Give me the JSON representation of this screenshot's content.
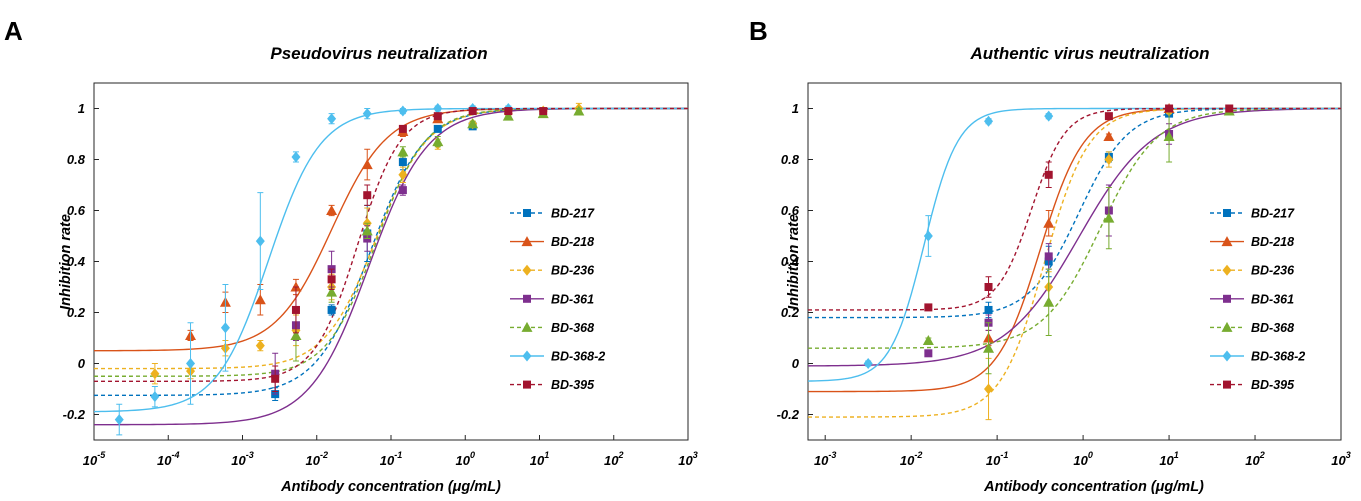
{
  "chart_data": [
    {
      "type": "scatter",
      "panel": "A",
      "title": "Pseudovirus neutralization",
      "xlabel": "Antibody concentration (μg/mL)",
      "ylabel": "Inhibition rate",
      "xscale": "log",
      "xlim": [
        -5,
        3
      ],
      "ylim": [
        -0.3,
        1.1
      ],
      "xticks": [
        {
          "base": "10",
          "exp": "-5"
        },
        {
          "base": "10",
          "exp": "-4"
        },
        {
          "base": "10",
          "exp": "-3"
        },
        {
          "base": "10",
          "exp": "-2"
        },
        {
          "base": "10",
          "exp": "-1"
        },
        {
          "base": "10",
          "exp": "0"
        },
        {
          "base": "10",
          "exp": "1"
        },
        {
          "base": "10",
          "exp": "2"
        },
        {
          "base": "10",
          "exp": "3"
        }
      ],
      "yticks": [
        "-0.2",
        "0",
        "0.2",
        "0.4",
        "0.6",
        "0.8",
        "1"
      ],
      "legend_position": "right",
      "series": [
        {
          "name": "BD-217",
          "color": "#0072BD",
          "marker": "square",
          "dash": true,
          "fit": {
            "bottom": -0.125,
            "top": 1.0,
            "log_ec50": -1.28,
            "hill": 1.2
          },
          "log_x": [
            -2.56,
            -1.8,
            -1.32,
            -0.84,
            -0.37,
            0.1
          ],
          "y": [
            -0.12,
            0.21,
            0.51,
            0.79,
            0.92,
            0.93
          ],
          "err": [
            0.025,
            0.02,
            0.11,
            0.03,
            0.01,
            0.01
          ]
        },
        {
          "name": "BD-218",
          "color": "#D95319",
          "marker": "triangle",
          "dash": false,
          "fit": {
            "bottom": 0.05,
            "top": 1.0,
            "log_ec50": -1.8,
            "hill": 1.15
          },
          "log_x": [
            -3.7,
            -3.23,
            -2.76,
            -2.28,
            -1.8,
            -1.32,
            -0.84,
            -0.37
          ],
          "y": [
            0.11,
            0.24,
            0.25,
            0.3,
            0.6,
            0.78,
            0.91,
            0.96
          ],
          "err": [
            0.02,
            0.04,
            0.06,
            0.03,
            0.02,
            0.06,
            0.02,
            0.01
          ]
        },
        {
          "name": "BD-236",
          "color": "#EDB120",
          "marker": "diamond",
          "dash": true,
          "fit": {
            "bottom": -0.02,
            "top": 1.0,
            "log_ec50": -1.2,
            "hill": 1.25
          },
          "log_x": [
            -4.18,
            -3.7,
            -3.23,
            -2.76,
            -2.28,
            -1.8,
            -1.32,
            -0.84,
            -0.37,
            0.1,
            0.58,
            1.05,
            1.53
          ],
          "y": [
            -0.04,
            -0.03,
            0.06,
            0.07,
            0.13,
            0.3,
            0.55,
            0.74,
            0.86,
            0.94,
            0.98,
            0.99,
            1.0
          ],
          "err": [
            0.04,
            0.03,
            0.03,
            0.02,
            0.06,
            0.05,
            0.06,
            0.03,
            0.02,
            0.01,
            0.01,
            0.01,
            0.02
          ]
        },
        {
          "name": "BD-361",
          "color": "#7E2F8E",
          "marker": "square",
          "dash": false,
          "fit": {
            "bottom": -0.24,
            "top": 1.0,
            "log_ec50": -1.3,
            "hill": 1.1
          },
          "log_x": [
            -2.56,
            -2.28,
            -1.8,
            -1.32,
            -0.84
          ],
          "y": [
            -0.04,
            0.15,
            0.37,
            0.49,
            0.68
          ],
          "err": [
            0.08,
            0.06,
            0.07,
            0.05,
            0.02
          ]
        },
        {
          "name": "BD-368",
          "color": "#77AC30",
          "marker": "triangle",
          "dash": true,
          "fit": {
            "bottom": -0.05,
            "top": 1.0,
            "log_ec50": -1.2,
            "hill": 1.3
          },
          "log_x": [
            -2.28,
            -1.8,
            -1.32,
            -0.84,
            -0.37,
            0.1,
            0.58,
            1.05,
            1.53
          ],
          "y": [
            0.11,
            0.28,
            0.52,
            0.83,
            0.87,
            0.94,
            0.97,
            0.98,
            0.99
          ],
          "err": [
            0.1,
            0.04,
            0.03,
            0.02,
            0.02,
            0.01,
            0.01,
            0.01,
            0.01
          ]
        },
        {
          "name": "BD-368-2",
          "color": "#4DBEEE",
          "marker": "diamond",
          "dash": false,
          "fit": {
            "bottom": -0.19,
            "top": 1.0,
            "log_ec50": -2.65,
            "hill": 1.25
          },
          "log_x": [
            -4.66,
            -4.18,
            -3.7,
            -3.23,
            -2.76,
            -2.28,
            -1.8,
            -1.32,
            -0.84,
            -0.37,
            0.1,
            0.58
          ],
          "y": [
            -0.22,
            -0.13,
            0.0,
            0.14,
            0.48,
            0.81,
            0.96,
            0.98,
            0.99,
            1.0,
            1.0,
            1.0
          ],
          "err": [
            0.06,
            0.04,
            0.16,
            0.17,
            0.19,
            0.02,
            0.02,
            0.02,
            0.01,
            0.01,
            0.01,
            0.01
          ]
        },
        {
          "name": "BD-395",
          "color": "#A2142F",
          "marker": "square",
          "dash": true,
          "fit": {
            "bottom": -0.07,
            "top": 1.0,
            "log_ec50": -1.45,
            "hill": 1.5
          },
          "log_x": [
            -2.56,
            -2.28,
            -1.8,
            -1.32,
            -0.84,
            -0.37,
            0.1,
            0.58,
            1.05
          ],
          "y": [
            -0.06,
            0.21,
            0.33,
            0.66,
            0.92,
            0.97,
            0.99,
            0.99,
            0.99
          ],
          "err": [
            0.05,
            0.09,
            0.04,
            0.04,
            0.01,
            0.01,
            0.01,
            0.01,
            0.01
          ]
        }
      ]
    },
    {
      "type": "scatter",
      "panel": "B",
      "title": "Authentic virus neutralization",
      "xlabel": "Antibody concentration (μg/mL)",
      "ylabel": "Inhibition rate",
      "xscale": "log",
      "xlim": [
        -3.2,
        3
      ],
      "ylim": [
        -0.3,
        1.1
      ],
      "xticks": [
        {
          "base": "10",
          "exp": "-3"
        },
        {
          "base": "10",
          "exp": "-2"
        },
        {
          "base": "10",
          "exp": "-1"
        },
        {
          "base": "10",
          "exp": "0"
        },
        {
          "base": "10",
          "exp": "1"
        },
        {
          "base": "10",
          "exp": "2"
        },
        {
          "base": "10",
          "exp": "3"
        }
      ],
      "yticks": [
        "-0.2",
        "0",
        "0.2",
        "0.4",
        "0.6",
        "0.8",
        "1"
      ],
      "legend_position": "right",
      "series": [
        {
          "name": "BD-217",
          "color": "#0072BD",
          "marker": "square",
          "dash": true,
          "fit": {
            "bottom": 0.18,
            "top": 1.0,
            "log_ec50": -0.05,
            "hill": 1.5
          },
          "log_x": [
            -1.1,
            -0.4,
            0.3,
            1.0
          ],
          "y": [
            0.21,
            0.4,
            0.81,
            0.98
          ],
          "err": [
            0.03,
            0.06,
            0.02,
            0.01
          ]
        },
        {
          "name": "BD-218",
          "color": "#D95319",
          "marker": "triangle",
          "dash": false,
          "fit": {
            "bottom": -0.11,
            "top": 1.0,
            "log_ec50": -0.5,
            "hill": 1.7
          },
          "log_x": [
            -1.1,
            -0.4,
            0.3,
            1.0
          ],
          "y": [
            0.1,
            0.55,
            0.89,
            1.0
          ],
          "err": [
            0.03,
            0.05,
            0.01,
            0.01
          ]
        },
        {
          "name": "BD-236",
          "color": "#EDB120",
          "marker": "diamond",
          "dash": true,
          "fit": {
            "bottom": -0.21,
            "top": 1.0,
            "log_ec50": -0.45,
            "hill": 1.7
          },
          "log_x": [
            -1.1,
            -0.4,
            0.3,
            1.0
          ],
          "y": [
            -0.1,
            0.3,
            0.8,
            0.99
          ],
          "err": [
            0.12,
            0.06,
            0.03,
            0.01
          ]
        },
        {
          "name": "BD-361",
          "color": "#7E2F8E",
          "marker": "square",
          "dash": false,
          "fit": {
            "bottom": -0.01,
            "top": 1.0,
            "log_ec50": -0.05,
            "hill": 1.0
          },
          "log_x": [
            -1.8,
            -1.1,
            -0.4,
            0.3,
            1.0
          ],
          "y": [
            0.04,
            0.16,
            0.42,
            0.6,
            0.9
          ],
          "err": [
            0.01,
            0.03,
            0.05,
            0.1,
            0.04
          ]
        },
        {
          "name": "BD-368",
          "color": "#77AC30",
          "marker": "triangle",
          "dash": true,
          "fit": {
            "bottom": 0.06,
            "top": 1.0,
            "log_ec50": 0.2,
            "hill": 1.3
          },
          "log_x": [
            -1.8,
            -1.1,
            -0.4,
            0.3,
            1.0,
            1.7
          ],
          "y": [
            0.09,
            0.06,
            0.24,
            0.57,
            0.89,
            0.99
          ],
          "err": [
            0.01,
            0.1,
            0.13,
            0.12,
            0.1,
            0.01
          ]
        },
        {
          "name": "BD-368-2",
          "color": "#4DBEEE",
          "marker": "diamond",
          "dash": false,
          "fit": {
            "bottom": -0.07,
            "top": 1.0,
            "log_ec50": -1.85,
            "hill": 2.2
          },
          "log_x": [
            -2.5,
            -1.8,
            -1.1,
            -0.4
          ],
          "y": [
            0.0,
            0.5,
            0.95,
            0.97
          ],
          "err": [
            0.01,
            0.08,
            0.01,
            0.01
          ]
        },
        {
          "name": "BD-395",
          "color": "#A2142F",
          "marker": "square",
          "dash": true,
          "fit": {
            "bottom": 0.21,
            "top": 1.0,
            "log_ec50": -0.6,
            "hill": 2.2
          },
          "log_x": [
            -1.8,
            -1.1,
            -0.4,
            0.3,
            1.0,
            1.7
          ],
          "y": [
            0.22,
            0.3,
            0.74,
            0.97,
            1.0,
            1.0
          ],
          "err": [
            0.01,
            0.04,
            0.05,
            0.01,
            0.01,
            0.01
          ]
        }
      ]
    }
  ]
}
